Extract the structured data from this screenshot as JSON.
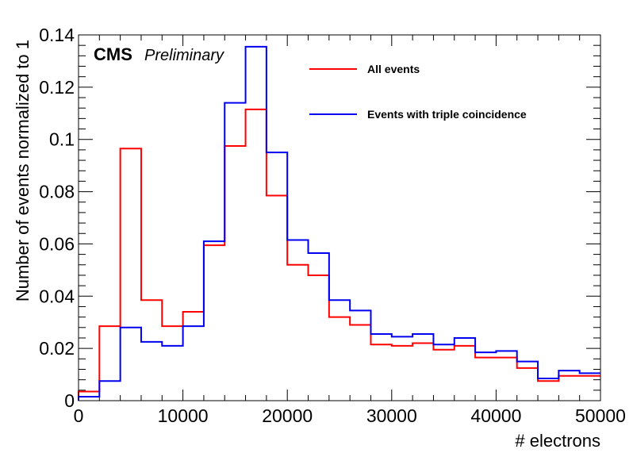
{
  "chart_data": {
    "type": "histogram",
    "xlabel": "# electrons",
    "ylabel": "Number of events normalized to 1",
    "xlim": [
      0,
      50000
    ],
    "ylim": [
      0,
      0.14
    ],
    "xticks": [
      0,
      10000,
      20000,
      30000,
      40000,
      50000
    ],
    "yticks": [
      0,
      0.02,
      0.04,
      0.06,
      0.08,
      0.1,
      0.12,
      0.14
    ],
    "xtick_labels": [
      "0",
      "10000",
      "20000",
      "30000",
      "40000",
      "50000"
    ],
    "ytick_labels": [
      "0",
      "0.02",
      "0.04",
      "0.06",
      "0.08",
      "0.1",
      "0.12",
      "0.14"
    ],
    "bin_edges": [
      0,
      2000,
      4000,
      6000,
      8000,
      10000,
      12000,
      14000,
      16000,
      18000,
      20000,
      22000,
      24000,
      26000,
      28000,
      30000,
      32000,
      34000,
      36000,
      38000,
      40000,
      42000,
      44000,
      46000,
      48000,
      50000
    ],
    "grid": false,
    "legend_position": "top-center",
    "series": [
      {
        "name": "All events",
        "color": "#ff0000",
        "values": [
          0.0035,
          0.0285,
          0.0965,
          0.0385,
          0.0285,
          0.034,
          0.0595,
          0.0975,
          0.1115,
          0.0785,
          0.052,
          0.048,
          0.032,
          0.029,
          0.0215,
          0.021,
          0.022,
          0.0195,
          0.021,
          0.0165,
          0.0165,
          0.0125,
          0.0075,
          0.0095,
          0.0095
        ]
      },
      {
        "name": "Events with triple coincidence",
        "color": "#0000ee",
        "values": [
          0.0015,
          0.0075,
          0.028,
          0.0225,
          0.021,
          0.0285,
          0.061,
          0.114,
          0.1355,
          0.095,
          0.0615,
          0.0565,
          0.0385,
          0.0345,
          0.0255,
          0.0245,
          0.0255,
          0.0215,
          0.024,
          0.0185,
          0.019,
          0.015,
          0.0085,
          0.0115,
          0.0105
        ]
      }
    ],
    "annotations": {
      "experiment": "CMS",
      "status": "Preliminary"
    }
  }
}
